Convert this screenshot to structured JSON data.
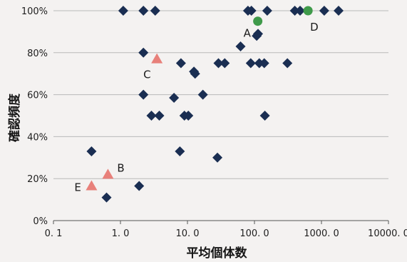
{
  "chart_data": {
    "type": "scatter",
    "title": "",
    "xlabel": "平均個体数",
    "ylabel": "確認頻度",
    "x_scale": "log",
    "xlim": [
      0.1,
      10000
    ],
    "ylim": [
      0,
      100
    ],
    "x_ticks": [
      "0. 1",
      "1. 0",
      "10. 0",
      "100. 0",
      "1000. 0",
      "10000. 0"
    ],
    "y_ticks": [
      "0%",
      "20%",
      "40%",
      "60%",
      "80%",
      "100%"
    ],
    "grid": "horizontal",
    "colors": {
      "diamond": "#1a2e52",
      "triangle": "#e8807a",
      "circle": "#3f9a4a"
    },
    "series": [
      {
        "marker": "diamond",
        "points": [
          {
            "x": 1.1,
            "y": 100
          },
          {
            "x": 2.2,
            "y": 100
          },
          {
            "x": 3.3,
            "y": 100
          },
          {
            "x": 80,
            "y": 100
          },
          {
            "x": 90,
            "y": 100
          },
          {
            "x": 155,
            "y": 100
          },
          {
            "x": 400,
            "y": 100
          },
          {
            "x": 480,
            "y": 100
          },
          {
            "x": 1100,
            "y": 100
          },
          {
            "x": 1800,
            "y": 100
          },
          {
            "x": 108,
            "y": 88
          },
          {
            "x": 113,
            "y": 89
          },
          {
            "x": 62,
            "y": 83
          },
          {
            "x": 2.2,
            "y": 80
          },
          {
            "x": 8,
            "y": 75
          },
          {
            "x": 29,
            "y": 75
          },
          {
            "x": 36,
            "y": 75
          },
          {
            "x": 88,
            "y": 75
          },
          {
            "x": 118,
            "y": 75
          },
          {
            "x": 140,
            "y": 75
          },
          {
            "x": 310,
            "y": 75
          },
          {
            "x": 12.5,
            "y": 71
          },
          {
            "x": 13,
            "y": 70
          },
          {
            "x": 2.2,
            "y": 60
          },
          {
            "x": 6.3,
            "y": 58.5
          },
          {
            "x": 17,
            "y": 60
          },
          {
            "x": 2.9,
            "y": 50
          },
          {
            "x": 3.8,
            "y": 50
          },
          {
            "x": 9,
            "y": 50
          },
          {
            "x": 10.3,
            "y": 50
          },
          {
            "x": 143,
            "y": 50
          },
          {
            "x": 0.37,
            "y": 33
          },
          {
            "x": 7.7,
            "y": 33
          },
          {
            "x": 28,
            "y": 30
          },
          {
            "x": 1.9,
            "y": 16.5
          },
          {
            "x": 0.62,
            "y": 11
          }
        ]
      },
      {
        "marker": "triangle",
        "points": [
          {
            "x": 0.37,
            "y": 16.5,
            "label": "E"
          },
          {
            "x": 0.65,
            "y": 22,
            "label": "B"
          },
          {
            "x": 3.5,
            "y": 77,
            "label": "C"
          }
        ]
      },
      {
        "marker": "circle",
        "points": [
          {
            "x": 112,
            "y": 95,
            "label": "A"
          },
          {
            "x": 630,
            "y": 100,
            "label": "D"
          }
        ]
      }
    ]
  }
}
